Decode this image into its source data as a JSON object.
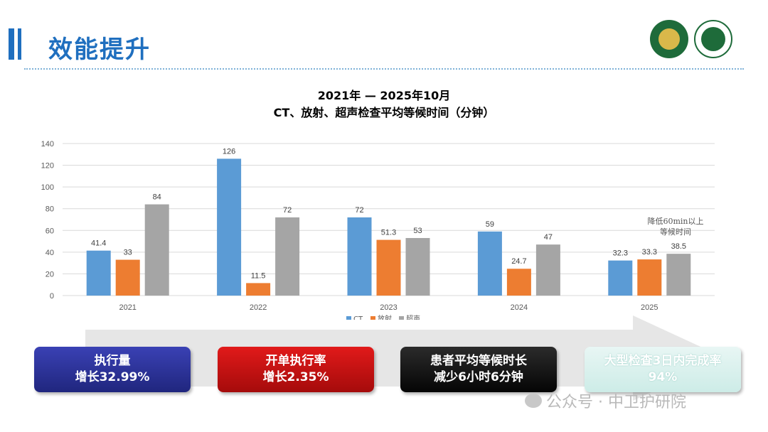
{
  "header": {
    "title": "效能提升"
  },
  "chart_data": {
    "type": "bar",
    "title_line1": "2021年 — 2025年10月",
    "title_line2": "CT、放射、超声检查平均等候时间（分钟）",
    "categories": [
      "2021",
      "2022",
      "2023",
      "2024",
      "2025"
    ],
    "series": [
      {
        "name": "CT",
        "color": "#5b9bd5",
        "values": [
          41.4,
          126,
          72,
          59,
          32.3
        ]
      },
      {
        "name": "放射",
        "color": "#ed7d31",
        "values": [
          33,
          11.5,
          51.3,
          24.7,
          33.3
        ]
      },
      {
        "name": "超声",
        "color": "#a5a5a5",
        "values": [
          84,
          72,
          53,
          47,
          38.5
        ]
      }
    ],
    "ylim": [
      0,
      140
    ],
    "yticks": [
      "0",
      "20",
      "40",
      "60",
      "80",
      "100",
      "120",
      "140"
    ],
    "grid": true,
    "legend_position": "bottom",
    "annotation": {
      "line1": "降低60min以上",
      "line2": "等候时间"
    }
  },
  "summary_boxes": [
    {
      "line1": "执行量",
      "line2": "增长32.99%"
    },
    {
      "line1": "开单执行率",
      "line2": "增长2.35%"
    },
    {
      "line1": "患者平均等候时长",
      "line2": "减少6小时6分钟"
    },
    {
      "line1": "大型检查3日内完成率",
      "line2": "94%"
    }
  ],
  "watermark": {
    "text": "公众号 · 中卫护研院"
  },
  "colors": {
    "accent": "#1f6fbf"
  }
}
